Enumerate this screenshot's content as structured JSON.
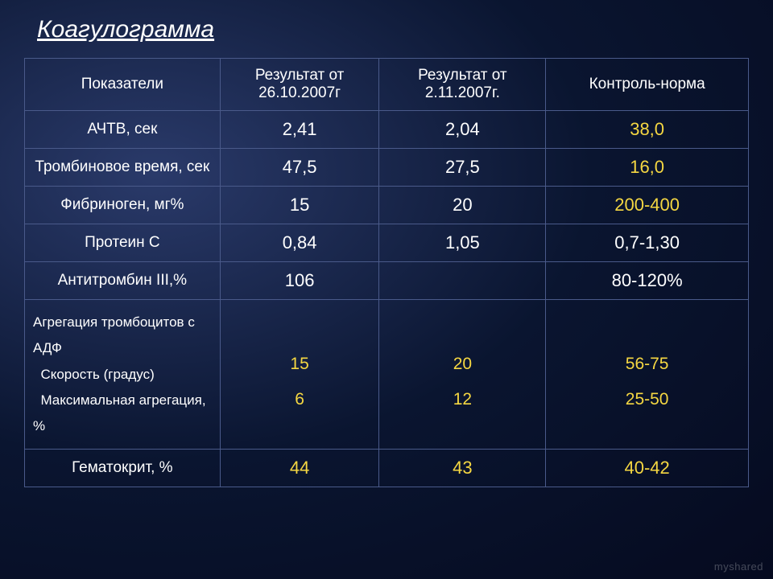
{
  "title": "Коагулограмма",
  "headers": {
    "param": "Показатели",
    "res1": "Результат от 26.10.2007г",
    "res2": "Результат от 2.11.2007г.",
    "norm": "Контроль-норма"
  },
  "rows": {
    "aptt": {
      "label": "АЧТВ, сек",
      "v1": "2,41",
      "v2": "2,04",
      "norm": "38,0"
    },
    "thrombin": {
      "label": "Тромбиновое время, сек",
      "v1": "47,5",
      "v2": "27,5",
      "norm": "16,0"
    },
    "fibrinogen": {
      "label": "Фибриноген, мг%",
      "v1": "15",
      "v2": "20",
      "norm": "200-400"
    },
    "proteinc": {
      "label": "Протеин С",
      "v1": "0,84",
      "v2": "1,05",
      "norm": "0,7-1,30"
    },
    "antithromb": {
      "label": "Антитромбин III,%",
      "v1": "106",
      "v2": "",
      "norm": "80-120%"
    },
    "adp": {
      "line1": "Агрегация тромбоцитов с",
      "line2": "АДФ",
      "line3": "  Скорость (градус)",
      "line4": "  Максимальная агрегация, %",
      "v1a": "15",
      "v1b": "6",
      "v2a": "20",
      "v2b": "12",
      "n1": "56-75",
      "n2": "25-50"
    },
    "hematocrit": {
      "label": "Гематокрит, %",
      "v1": "44",
      "v2": "43",
      "norm": "40-42"
    }
  },
  "watermark": "myshared",
  "colors": {
    "yellow": "#f5d742",
    "white": "#ffffff",
    "border": "#4a5a8a"
  }
}
